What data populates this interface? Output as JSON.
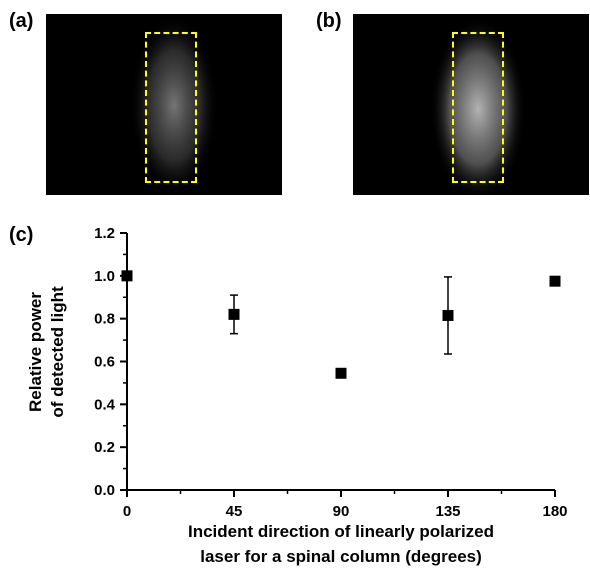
{
  "panels": {
    "a_label": "(a)",
    "b_label": "(b)",
    "c_label": "(c)",
    "roi_color": "#ffff00"
  },
  "chart_data": {
    "type": "scatter",
    "xlabel_line1": "Incident direction of linearly polarized",
    "xlabel_line2": "laser for a spinal column (degrees)",
    "ylabel_line1": "Relative power",
    "ylabel_line2": "of detected light",
    "xlim": [
      0,
      180
    ],
    "ylim": [
      0,
      1.2
    ],
    "x_ticks": [
      0,
      45,
      90,
      135,
      180
    ],
    "y_ticks": [
      0.0,
      0.2,
      0.4,
      0.6,
      0.8,
      1.0,
      1.2
    ],
    "x_tick_labels": [
      "0",
      "45",
      "90",
      "135",
      "180"
    ],
    "y_tick_labels": [
      "0.0",
      "0.2",
      "0.4",
      "0.6",
      "0.8",
      "1.0",
      "1.2"
    ],
    "marker": "square",
    "marker_color": "#000000",
    "points": [
      {
        "x": 0,
        "y": 1.0,
        "err": 0
      },
      {
        "x": 45,
        "y": 0.82,
        "err": 0.09
      },
      {
        "x": 90,
        "y": 0.545,
        "err": 0
      },
      {
        "x": 135,
        "y": 0.815,
        "err": 0.18
      },
      {
        "x": 180,
        "y": 0.975,
        "err": 0
      }
    ]
  }
}
